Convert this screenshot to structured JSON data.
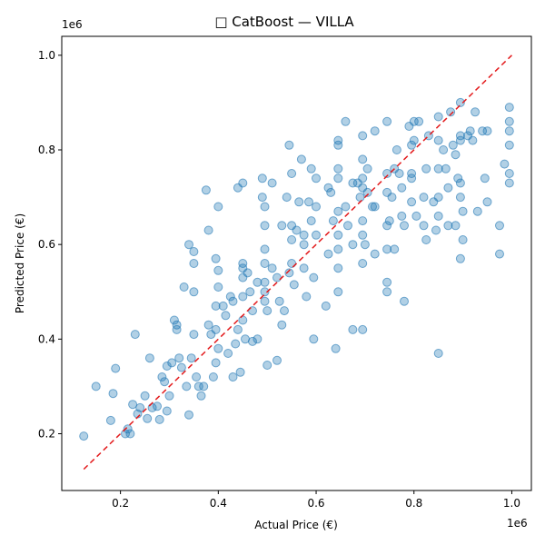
{
  "chart_data": {
    "type": "scatter",
    "title": "□ CatBoost — VILLA",
    "xlabel": "Actual Price (€)",
    "ylabel": "Predicted Price (€)",
    "x_exponent_label": "1e6",
    "y_exponent_label": "1e6",
    "xlim": [
      0.08,
      1.04
    ],
    "ylim": [
      0.08,
      1.04
    ],
    "xticks": [
      0.2,
      0.4,
      0.6,
      0.8,
      1.0
    ],
    "yticks": [
      0.2,
      0.4,
      0.6,
      0.8,
      1.0
    ],
    "xtick_labels": [
      "0.2",
      "0.4",
      "0.6",
      "0.8",
      "1.0"
    ],
    "ytick_labels": [
      "0.2",
      "0.4",
      "0.6",
      "0.8",
      "1.0"
    ],
    "grid": false,
    "reference_line": {
      "style": "dashed",
      "color": "#e31a1c",
      "from": [
        0.125,
        0.125
      ],
      "to": [
        1.0,
        1.0
      ]
    },
    "point_color": "#1f77b4",
    "points": [
      [
        0.125,
        0.195
      ],
      [
        0.15,
        0.3
      ],
      [
        0.18,
        0.228
      ],
      [
        0.185,
        0.285
      ],
      [
        0.19,
        0.338
      ],
      [
        0.21,
        0.2
      ],
      [
        0.215,
        0.21
      ],
      [
        0.22,
        0.2
      ],
      [
        0.225,
        0.262
      ],
      [
        0.23,
        0.41
      ],
      [
        0.235,
        0.242
      ],
      [
        0.24,
        0.255
      ],
      [
        0.25,
        0.28
      ],
      [
        0.255,
        0.232
      ],
      [
        0.26,
        0.36
      ],
      [
        0.265,
        0.255
      ],
      [
        0.275,
        0.258
      ],
      [
        0.28,
        0.23
      ],
      [
        0.285,
        0.32
      ],
      [
        0.29,
        0.31
      ],
      [
        0.295,
        0.248
      ],
      [
        0.295,
        0.343
      ],
      [
        0.3,
        0.28
      ],
      [
        0.305,
        0.35
      ],
      [
        0.31,
        0.44
      ],
      [
        0.315,
        0.43
      ],
      [
        0.315,
        0.42
      ],
      [
        0.32,
        0.36
      ],
      [
        0.325,
        0.34
      ],
      [
        0.33,
        0.51
      ],
      [
        0.335,
        0.3
      ],
      [
        0.34,
        0.24
      ],
      [
        0.34,
        0.6
      ],
      [
        0.345,
        0.36
      ],
      [
        0.35,
        0.585
      ],
      [
        0.35,
        0.56
      ],
      [
        0.35,
        0.5
      ],
      [
        0.35,
        0.41
      ],
      [
        0.355,
        0.32
      ],
      [
        0.36,
        0.3
      ],
      [
        0.365,
        0.28
      ],
      [
        0.37,
        0.3
      ],
      [
        0.375,
        0.715
      ],
      [
        0.38,
        0.63
      ],
      [
        0.38,
        0.43
      ],
      [
        0.385,
        0.41
      ],
      [
        0.39,
        0.32
      ],
      [
        0.395,
        0.57
      ],
      [
        0.395,
        0.47
      ],
      [
        0.395,
        0.42
      ],
      [
        0.395,
        0.35
      ],
      [
        0.4,
        0.545
      ],
      [
        0.4,
        0.51
      ],
      [
        0.4,
        0.38
      ],
      [
        0.4,
        0.68
      ],
      [
        0.41,
        0.47
      ],
      [
        0.415,
        0.45
      ],
      [
        0.42,
        0.37
      ],
      [
        0.425,
        0.49
      ],
      [
        0.43,
        0.48
      ],
      [
        0.43,
        0.32
      ],
      [
        0.435,
        0.39
      ],
      [
        0.44,
        0.72
      ],
      [
        0.44,
        0.42
      ],
      [
        0.445,
        0.33
      ],
      [
        0.45,
        0.73
      ],
      [
        0.45,
        0.56
      ],
      [
        0.45,
        0.55
      ],
      [
        0.45,
        0.53
      ],
      [
        0.45,
        0.49
      ],
      [
        0.45,
        0.44
      ],
      [
        0.455,
        0.4
      ],
      [
        0.46,
        0.54
      ],
      [
        0.465,
        0.5
      ],
      [
        0.47,
        0.46
      ],
      [
        0.47,
        0.395
      ],
      [
        0.48,
        0.52
      ],
      [
        0.48,
        0.4
      ],
      [
        0.49,
        0.74
      ],
      [
        0.49,
        0.7
      ],
      [
        0.495,
        0.68
      ],
      [
        0.495,
        0.64
      ],
      [
        0.495,
        0.59
      ],
      [
        0.495,
        0.56
      ],
      [
        0.495,
        0.52
      ],
      [
        0.495,
        0.5
      ],
      [
        0.495,
        0.48
      ],
      [
        0.5,
        0.345
      ],
      [
        0.5,
        0.46
      ],
      [
        0.51,
        0.73
      ],
      [
        0.51,
        0.55
      ],
      [
        0.52,
        0.53
      ],
      [
        0.52,
        0.355
      ],
      [
        0.525,
        0.48
      ],
      [
        0.53,
        0.43
      ],
      [
        0.53,
        0.64
      ],
      [
        0.535,
        0.46
      ],
      [
        0.54,
        0.7
      ],
      [
        0.545,
        0.54
      ],
      [
        0.545,
        0.81
      ],
      [
        0.55,
        0.75
      ],
      [
        0.55,
        0.64
      ],
      [
        0.55,
        0.61
      ],
      [
        0.55,
        0.56
      ],
      [
        0.555,
        0.515
      ],
      [
        0.56,
        0.63
      ],
      [
        0.565,
        0.69
      ],
      [
        0.57,
        0.78
      ],
      [
        0.575,
        0.62
      ],
      [
        0.575,
        0.6
      ],
      [
        0.575,
        0.55
      ],
      [
        0.58,
        0.49
      ],
      [
        0.585,
        0.69
      ],
      [
        0.59,
        0.76
      ],
      [
        0.59,
        0.65
      ],
      [
        0.595,
        0.53
      ],
      [
        0.595,
        0.4
      ],
      [
        0.6,
        0.62
      ],
      [
        0.6,
        0.68
      ],
      [
        0.6,
        0.74
      ],
      [
        0.62,
        0.47
      ],
      [
        0.625,
        0.72
      ],
      [
        0.625,
        0.58
      ],
      [
        0.63,
        0.71
      ],
      [
        0.635,
        0.65
      ],
      [
        0.64,
        0.38
      ],
      [
        0.645,
        0.82
      ],
      [
        0.645,
        0.81
      ],
      [
        0.645,
        0.76
      ],
      [
        0.645,
        0.74
      ],
      [
        0.645,
        0.67
      ],
      [
        0.645,
        0.62
      ],
      [
        0.645,
        0.59
      ],
      [
        0.645,
        0.55
      ],
      [
        0.645,
        0.5
      ],
      [
        0.66,
        0.86
      ],
      [
        0.66,
        0.68
      ],
      [
        0.665,
        0.64
      ],
      [
        0.675,
        0.73
      ],
      [
        0.675,
        0.6
      ],
      [
        0.675,
        0.42
      ],
      [
        0.685,
        0.73
      ],
      [
        0.69,
        0.7
      ],
      [
        0.695,
        0.83
      ],
      [
        0.695,
        0.78
      ],
      [
        0.695,
        0.74
      ],
      [
        0.695,
        0.72
      ],
      [
        0.695,
        0.65
      ],
      [
        0.695,
        0.62
      ],
      [
        0.695,
        0.56
      ],
      [
        0.695,
        0.42
      ],
      [
        0.7,
        0.6
      ],
      [
        0.705,
        0.76
      ],
      [
        0.705,
        0.71
      ],
      [
        0.715,
        0.68
      ],
      [
        0.72,
        0.84
      ],
      [
        0.72,
        0.68
      ],
      [
        0.72,
        0.58
      ],
      [
        0.745,
        0.86
      ],
      [
        0.745,
        0.75
      ],
      [
        0.745,
        0.71
      ],
      [
        0.745,
        0.64
      ],
      [
        0.745,
        0.59
      ],
      [
        0.745,
        0.52
      ],
      [
        0.745,
        0.5
      ],
      [
        0.75,
        0.65
      ],
      [
        0.755,
        0.7
      ],
      [
        0.76,
        0.76
      ],
      [
        0.76,
        0.59
      ],
      [
        0.765,
        0.8
      ],
      [
        0.77,
        0.75
      ],
      [
        0.775,
        0.72
      ],
      [
        0.775,
        0.66
      ],
      [
        0.78,
        0.64
      ],
      [
        0.78,
        0.48
      ],
      [
        0.79,
        0.85
      ],
      [
        0.795,
        0.81
      ],
      [
        0.795,
        0.75
      ],
      [
        0.795,
        0.74
      ],
      [
        0.795,
        0.69
      ],
      [
        0.8,
        0.86
      ],
      [
        0.8,
        0.82
      ],
      [
        0.805,
        0.66
      ],
      [
        0.81,
        0.86
      ],
      [
        0.82,
        0.7
      ],
      [
        0.82,
        0.64
      ],
      [
        0.825,
        0.76
      ],
      [
        0.825,
        0.61
      ],
      [
        0.83,
        0.83
      ],
      [
        0.84,
        0.69
      ],
      [
        0.845,
        0.63
      ],
      [
        0.85,
        0.87
      ],
      [
        0.85,
        0.82
      ],
      [
        0.85,
        0.76
      ],
      [
        0.85,
        0.7
      ],
      [
        0.85,
        0.66
      ],
      [
        0.85,
        0.37
      ],
      [
        0.86,
        0.8
      ],
      [
        0.865,
        0.76
      ],
      [
        0.87,
        0.72
      ],
      [
        0.87,
        0.64
      ],
      [
        0.875,
        0.88
      ],
      [
        0.88,
        0.81
      ],
      [
        0.885,
        0.79
      ],
      [
        0.885,
        0.64
      ],
      [
        0.89,
        0.74
      ],
      [
        0.895,
        0.9
      ],
      [
        0.895,
        0.83
      ],
      [
        0.895,
        0.82
      ],
      [
        0.895,
        0.73
      ],
      [
        0.895,
        0.7
      ],
      [
        0.895,
        0.57
      ],
      [
        0.9,
        0.67
      ],
      [
        0.9,
        0.61
      ],
      [
        0.91,
        0.83
      ],
      [
        0.915,
        0.84
      ],
      [
        0.92,
        0.82
      ],
      [
        0.925,
        0.88
      ],
      [
        0.93,
        0.67
      ],
      [
        0.94,
        0.84
      ],
      [
        0.945,
        0.74
      ],
      [
        0.95,
        0.84
      ],
      [
        0.95,
        0.69
      ],
      [
        0.975,
        0.64
      ],
      [
        0.975,
        0.58
      ],
      [
        0.985,
        0.77
      ],
      [
        0.995,
        0.89
      ],
      [
        0.995,
        0.86
      ],
      [
        0.995,
        0.84
      ],
      [
        0.995,
        0.81
      ],
      [
        0.995,
        0.75
      ],
      [
        0.995,
        0.73
      ]
    ]
  }
}
